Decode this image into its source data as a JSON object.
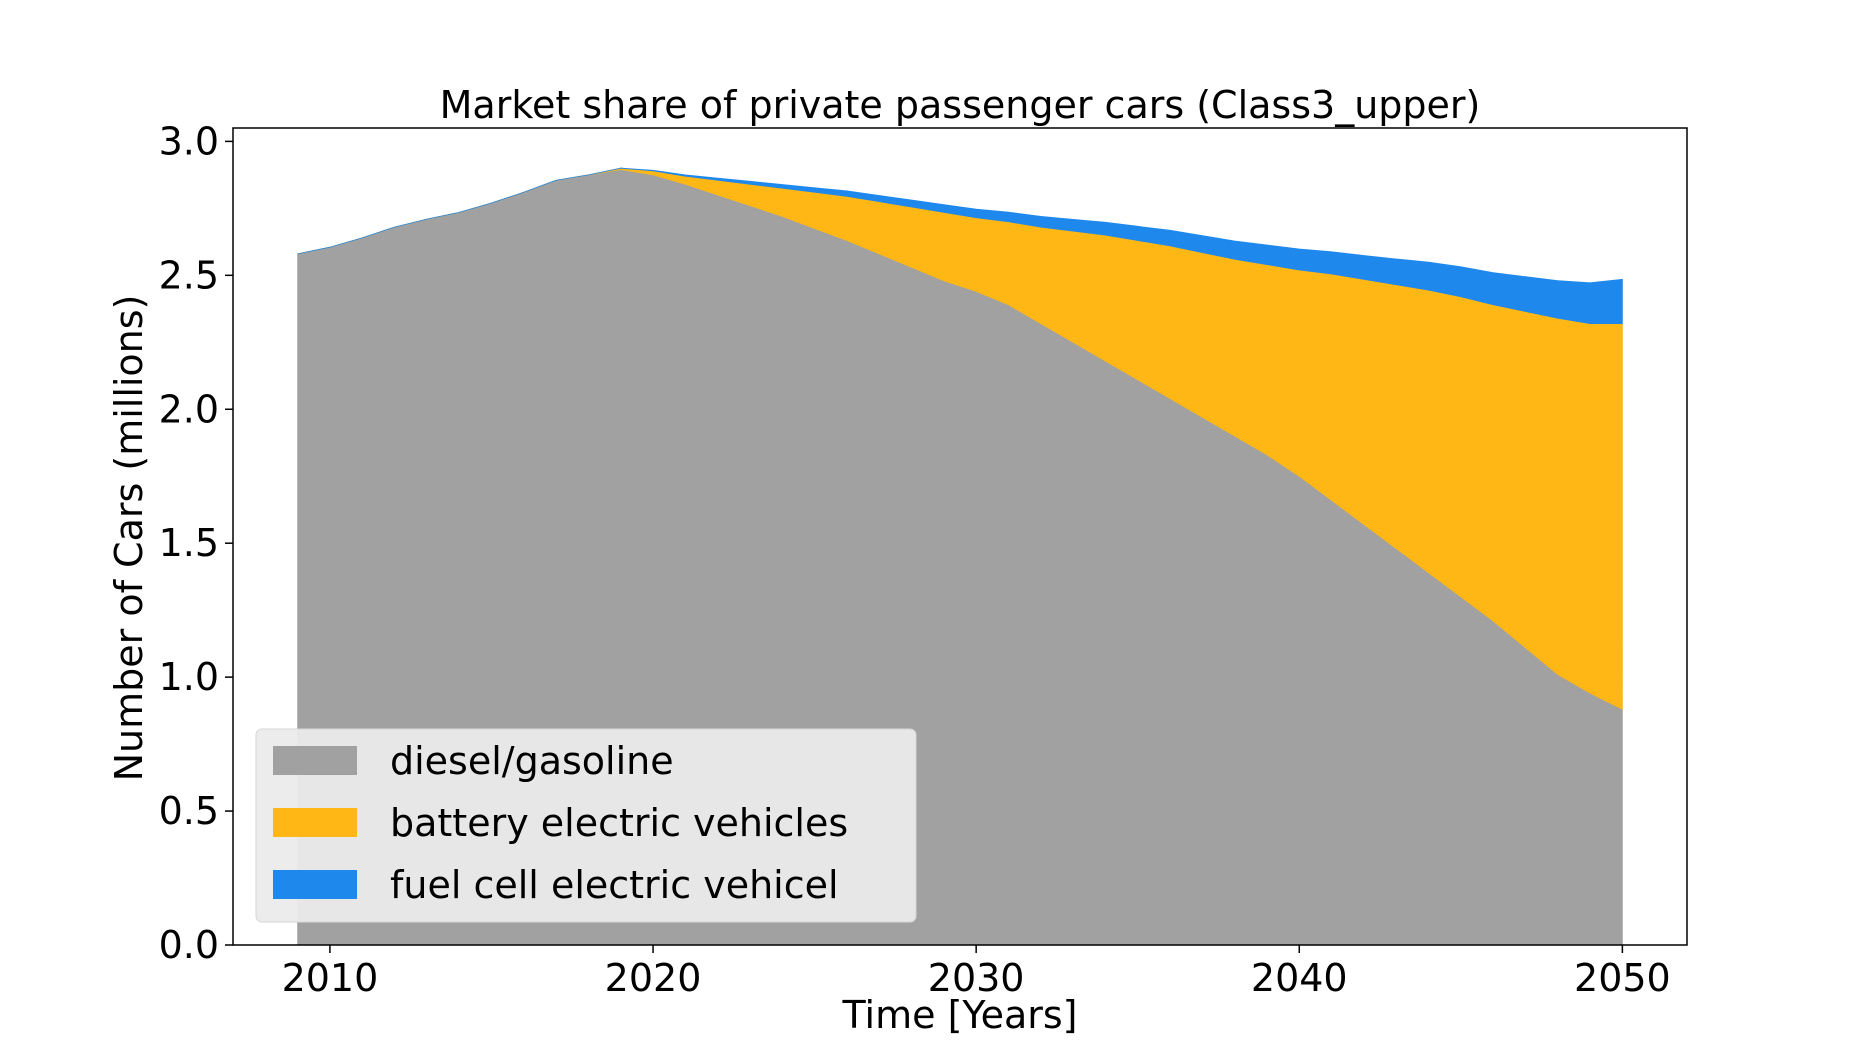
{
  "chart_data": {
    "type": "area",
    "stacked": true,
    "title": "Market share of private passenger cars (Class3_upper)",
    "xlabel": "Time [Years]",
    "ylabel": "Number of Cars (millions)",
    "xlim": [
      2007,
      2052
    ],
    "ylim": [
      0.0,
      3.05
    ],
    "xticks": [
      "2010",
      "2020",
      "2030",
      "2040",
      "2050"
    ],
    "yticks": [
      "0.0",
      "0.5",
      "1.0",
      "1.5",
      "2.0",
      "2.5",
      "3.0"
    ],
    "grid": false,
    "legend_position": "lower-left",
    "x": [
      2009,
      2010,
      2011,
      2012,
      2013,
      2014,
      2015,
      2016,
      2017,
      2018,
      2019,
      2020,
      2021,
      2022,
      2023,
      2024,
      2025,
      2026,
      2027,
      2028,
      2029,
      2030,
      2031,
      2032,
      2033,
      2034,
      2035,
      2036,
      2037,
      2038,
      2039,
      2040,
      2041,
      2042,
      2043,
      2044,
      2045,
      2046,
      2047,
      2048,
      2049,
      2050
    ],
    "series": [
      {
        "name": "diesel/gasoline",
        "color": "#a1a1a1",
        "values": [
          2.58,
          2.605,
          2.64,
          2.68,
          2.71,
          2.735,
          2.77,
          2.81,
          2.855,
          2.875,
          2.895,
          2.875,
          2.84,
          2.8,
          2.76,
          2.72,
          2.675,
          2.63,
          2.58,
          2.53,
          2.48,
          2.44,
          2.39,
          2.32,
          2.25,
          2.18,
          2.11,
          2.04,
          1.97,
          1.9,
          1.83,
          1.75,
          1.66,
          1.57,
          1.48,
          1.39,
          1.3,
          1.21,
          1.11,
          1.01,
          0.94,
          0.88
        ]
      },
      {
        "name": "battery electric vehicles",
        "color": "#feb714",
        "values": [
          0.0,
          0.0,
          0.0,
          0.0,
          0.0,
          0.0,
          0.0,
          0.0,
          0.0,
          0.0,
          0.005,
          0.015,
          0.03,
          0.055,
          0.08,
          0.105,
          0.135,
          0.165,
          0.195,
          0.225,
          0.255,
          0.275,
          0.31,
          0.36,
          0.415,
          0.47,
          0.52,
          0.57,
          0.615,
          0.66,
          0.71,
          0.77,
          0.845,
          0.915,
          0.985,
          1.055,
          1.12,
          1.18,
          1.255,
          1.33,
          1.38,
          1.44
        ]
      },
      {
        "name": "fuel cell electric vehicel",
        "color": "#1f88ec",
        "values": [
          0.0,
          0.0,
          0.0,
          0.0,
          0.0,
          0.0,
          0.0,
          0.0,
          0.0,
          0.0,
          0.0,
          0.002,
          0.005,
          0.008,
          0.011,
          0.014,
          0.017,
          0.02,
          0.023,
          0.026,
          0.029,
          0.032,
          0.036,
          0.04,
          0.044,
          0.048,
          0.053,
          0.058,
          0.063,
          0.068,
          0.073,
          0.078,
          0.083,
          0.089,
          0.096,
          0.104,
          0.112,
          0.12,
          0.13,
          0.14,
          0.152,
          0.165
        ]
      }
    ]
  }
}
